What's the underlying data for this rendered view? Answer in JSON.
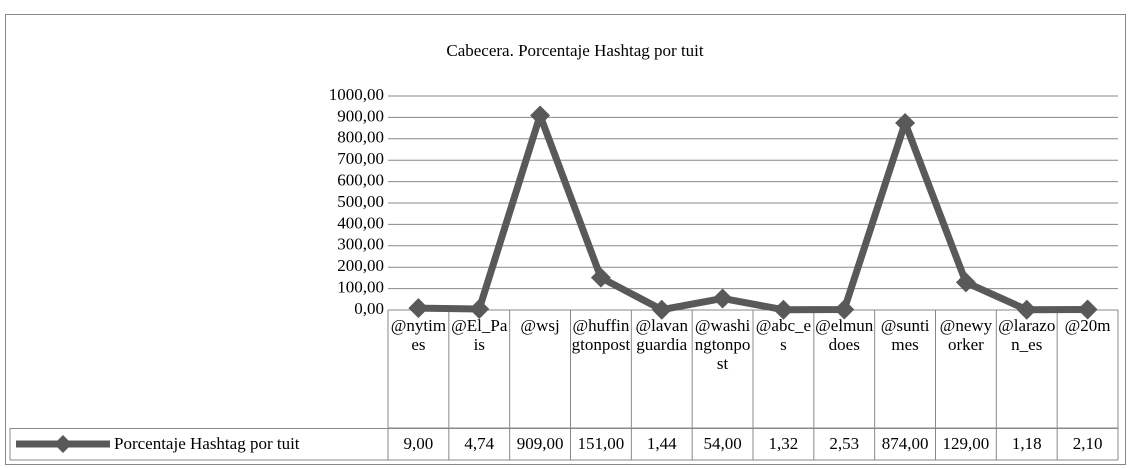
{
  "chart_data": {
    "type": "line",
    "title": "Cabecera. Porcentaje Hashtag por tuit",
    "categories": [
      "@nytimes",
      "@El_Pais",
      "@wsj",
      "@huffingtonpost",
      "@lavanguardia",
      "@washingtonpost",
      "@abc_es",
      "@elmundoes",
      "@suntimes",
      "@newyorker",
      "@larazon_es",
      "@20m"
    ],
    "series": [
      {
        "name": "Porcentaje Hashtag por tuit",
        "color": "#595959",
        "values": [
          9.0,
          4.74,
          909.0,
          151.0,
          1.44,
          54.0,
          1.32,
          2.53,
          874.0,
          129.0,
          1.18,
          2.1
        ],
        "value_labels": [
          "9,00",
          "4,74",
          "909,00",
          "151,00",
          "1,44",
          "54,00",
          "1,32",
          "2,53",
          "874,00",
          "129,00",
          "1,18",
          "2,10"
        ]
      }
    ],
    "ylim": [
      0,
      1000
    ],
    "yticks": [
      {
        "value": 0,
        "label": "0,00"
      },
      {
        "value": 100,
        "label": "100,00"
      },
      {
        "value": 200,
        "label": "200,00"
      },
      {
        "value": 300,
        "label": "300,00"
      },
      {
        "value": 400,
        "label": "400,00"
      },
      {
        "value": 500,
        "label": "500,00"
      },
      {
        "value": 600,
        "label": "600,00"
      },
      {
        "value": 700,
        "label": "700,00"
      },
      {
        "value": 800,
        "label": "800,00"
      },
      {
        "value": 900,
        "label": "900,00"
      },
      {
        "value": 1000,
        "label": "1000,00"
      }
    ],
    "grid": true
  }
}
